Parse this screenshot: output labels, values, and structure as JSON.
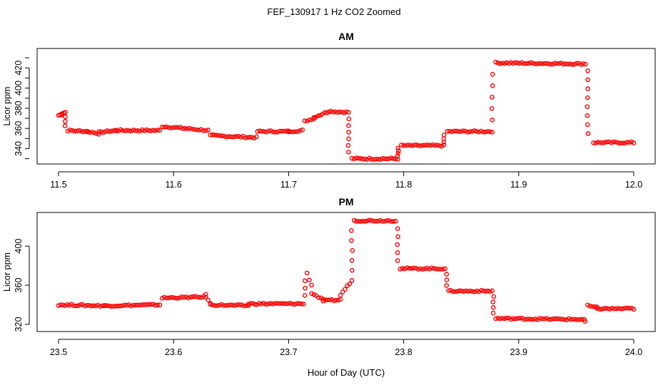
{
  "title": "FEF_130917  1 Hz CO2 Zoomed",
  "xlabel": "Hour of Day (UTC)",
  "chart_data": [
    {
      "type": "scatter",
      "title": "AM",
      "ylabel": "Licor ppm",
      "xlim": [
        11.5,
        12.0
      ],
      "ylim": [
        329,
        435
      ],
      "x_ticks": [
        "11.5",
        "11.6",
        "11.7",
        "11.8",
        "11.9",
        "12.0"
      ],
      "y_ticks": [
        "340",
        "360",
        "380",
        "400",
        "420"
      ],
      "marker": "open-circle",
      "color": "#ff0000",
      "segments": [
        [
          11.5,
          11.503,
          373,
          374
        ],
        [
          11.503,
          11.506,
          375,
          376
        ],
        [
          11.508,
          11.525,
          358,
          357
        ],
        [
          11.525,
          11.535,
          357,
          355
        ],
        [
          11.535,
          11.55,
          356,
          358
        ],
        [
          11.55,
          11.588,
          358,
          358
        ],
        [
          11.59,
          11.61,
          362,
          360
        ],
        [
          11.61,
          11.63,
          360,
          358
        ],
        [
          11.632,
          11.672,
          353,
          351
        ],
        [
          11.673,
          11.7,
          357,
          357
        ],
        [
          11.7,
          11.712,
          357,
          358
        ],
        [
          11.714,
          11.722,
          367,
          370
        ],
        [
          11.722,
          11.735,
          371,
          377
        ],
        [
          11.735,
          11.752,
          377,
          376
        ],
        [
          11.755,
          11.795,
          330,
          330
        ],
        [
          11.798,
          11.835,
          343,
          343
        ],
        [
          11.838,
          11.877,
          357,
          357
        ],
        [
          11.88,
          11.958,
          425,
          424
        ],
        [
          11.965,
          12.0,
          346,
          346
        ]
      ],
      "transitions": [
        [
          11.506,
          376,
          358,
          4
        ],
        [
          11.752,
          376,
          330,
          7
        ],
        [
          11.795,
          330,
          343,
          5
        ],
        [
          11.835,
          343,
          357,
          4
        ],
        [
          11.877,
          357,
          425,
          6
        ],
        [
          11.96,
          426,
          346,
          9
        ]
      ]
    },
    {
      "type": "scatter",
      "title": "PM",
      "ylabel": "Licor ppm",
      "xlim": [
        23.5,
        24.0
      ],
      "ylim": [
        317,
        430
      ],
      "x_ticks": [
        "23.5",
        "23.6",
        "23.7",
        "23.8",
        "23.9",
        "24.0"
      ],
      "y_ticks": [
        "320",
        "360",
        "400"
      ],
      "marker": "open-circle",
      "color": "#ff0000",
      "segments": [
        [
          23.5,
          23.54,
          340,
          339
        ],
        [
          23.54,
          23.588,
          339,
          340
        ],
        [
          23.59,
          23.628,
          347,
          348
        ],
        [
          23.628,
          23.632,
          350,
          341
        ],
        [
          23.632,
          23.665,
          340,
          339
        ],
        [
          23.665,
          23.713,
          341,
          341
        ],
        [
          23.716,
          23.72,
          372,
          360
        ],
        [
          23.72,
          23.73,
          352,
          345
        ],
        [
          23.73,
          23.745,
          344,
          345
        ],
        [
          23.745,
          23.755,
          350,
          365
        ],
        [
          23.757,
          23.793,
          426,
          426
        ],
        [
          23.797,
          23.836,
          377,
          377
        ],
        [
          23.839,
          23.877,
          354,
          354
        ],
        [
          23.88,
          23.957,
          326,
          325
        ],
        [
          23.96,
          23.968,
          339,
          337
        ],
        [
          23.968,
          24.0,
          336,
          336
        ]
      ],
      "transitions": [
        [
          23.714,
          342,
          372,
          4
        ],
        [
          23.755,
          365,
          426,
          6
        ],
        [
          23.795,
          426,
          377,
          6
        ],
        [
          23.837,
          377,
          354,
          4
        ],
        [
          23.878,
          354,
          326,
          5
        ],
        [
          23.958,
          325,
          321,
          2
        ]
      ]
    }
  ]
}
